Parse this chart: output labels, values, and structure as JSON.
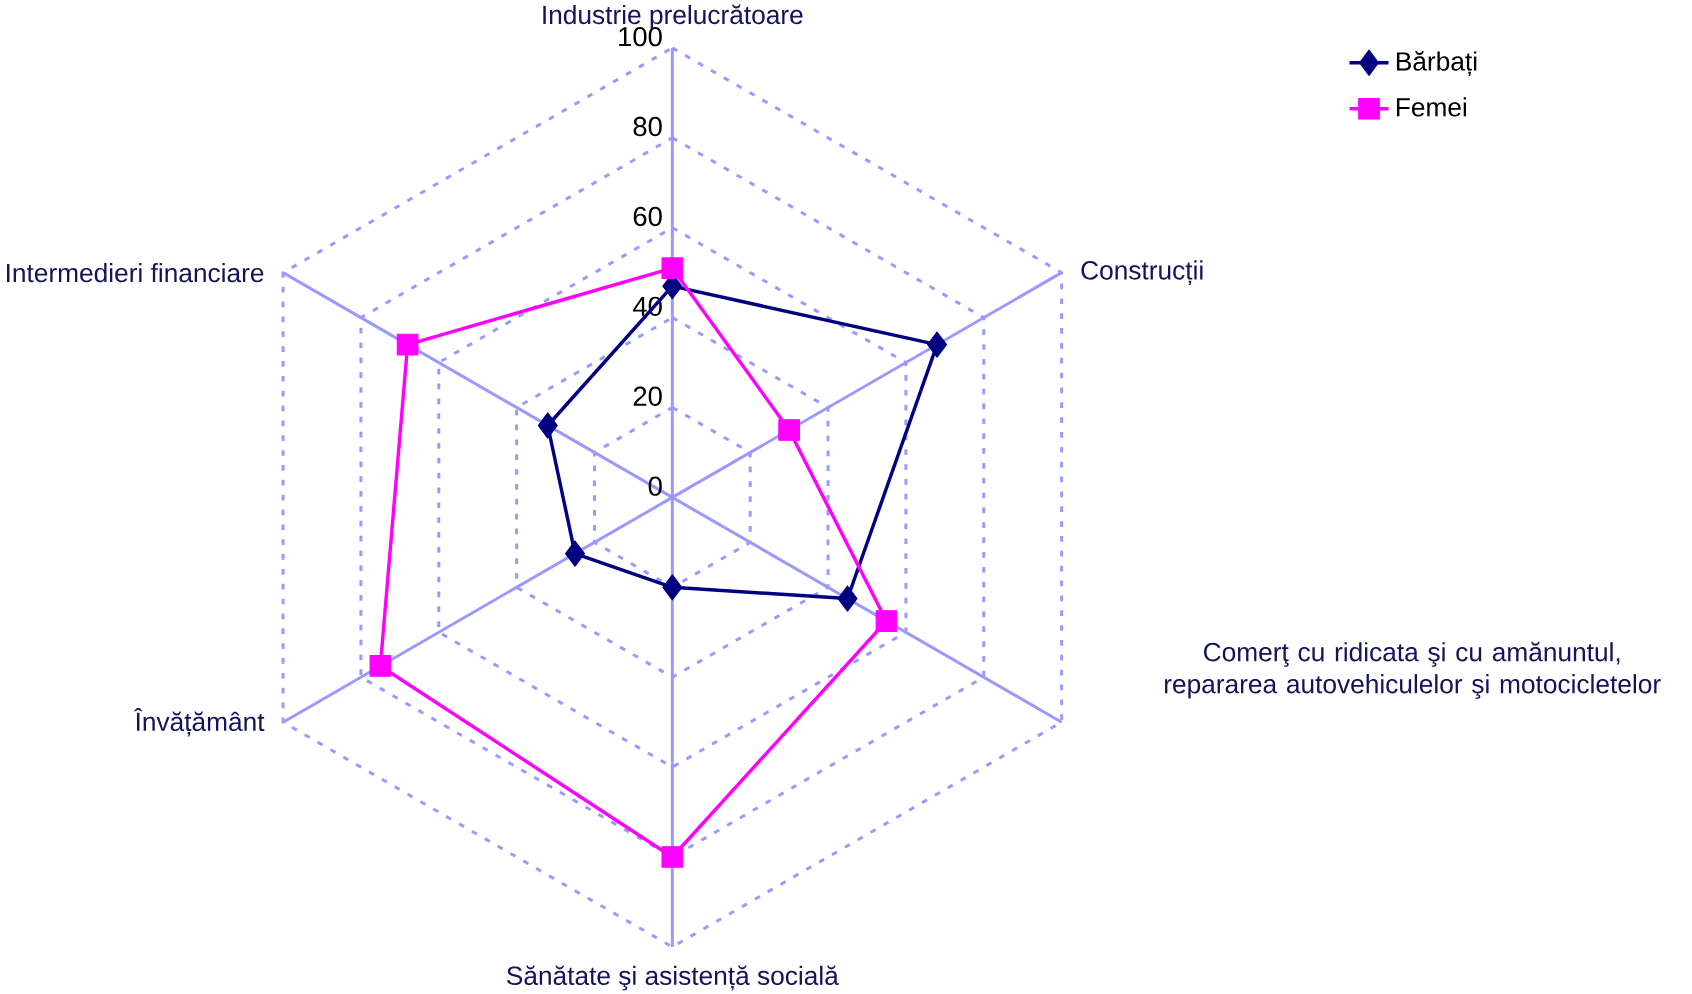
{
  "chart_data": {
    "type": "radar",
    "categories": [
      "Industrie prelucrătoare",
      "Construcții",
      "Comerţ cu ridicata şi cu amănuntul, repararea autovehiculelor şi motocicletelor",
      "Sănătate şi asistență socială",
      "Învățământ",
      "Intermedieri financiare"
    ],
    "series": [
      {
        "name": "Bărbați",
        "color": "#000080",
        "marker": "diamond",
        "values": [
          47,
          68,
          45,
          20,
          25,
          32
        ]
      },
      {
        "name": "Femei",
        "color": "#ff00ff",
        "marker": "square",
        "values": [
          51,
          30,
          55,
          80,
          75,
          68
        ]
      }
    ],
    "ylim": [
      0,
      100
    ],
    "yticks": [
      0,
      20,
      40,
      60,
      80,
      100
    ],
    "grid": true,
    "legend": "top right"
  }
}
